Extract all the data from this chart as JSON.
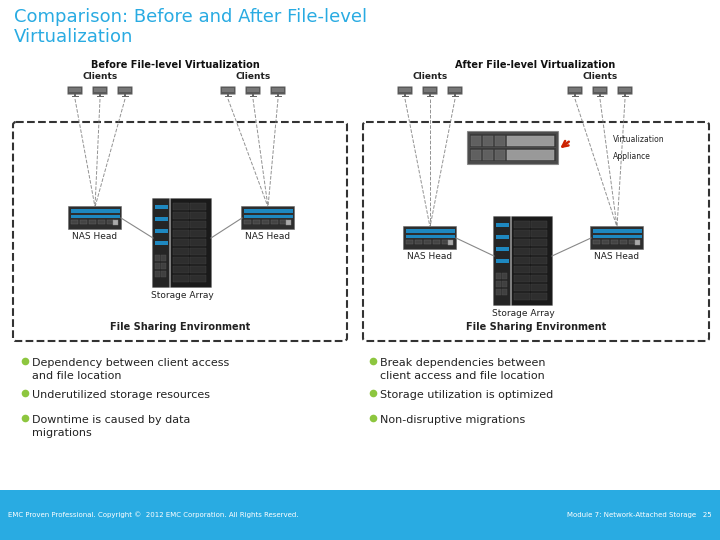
{
  "title_line1": "Comparison: Before and After File-level",
  "title_line2": "Virtualization",
  "title_color": "#29abe2",
  "bg_color": "#ffffff",
  "before_title": "Before File-level Virtualization",
  "after_title": "After File-level Virtualization",
  "before_bullets": [
    "Dependency between client access\nand file location",
    "Underutilized storage resources",
    "Downtime is caused by data\nmigrations"
  ],
  "after_bullets": [
    "Break dependencies between\nclient access and file location",
    "Storage utilization is optimized",
    "Non-disruptive migrations"
  ],
  "bullet_color": "#8dc63f",
  "footer_left": "EMC Proven Professional. Copyright ©  2012 EMC Corporation. All Rights Reserved.",
  "footer_right": "Module 7: Network-Attached Storage   25",
  "footer_bg": "#29abe2"
}
